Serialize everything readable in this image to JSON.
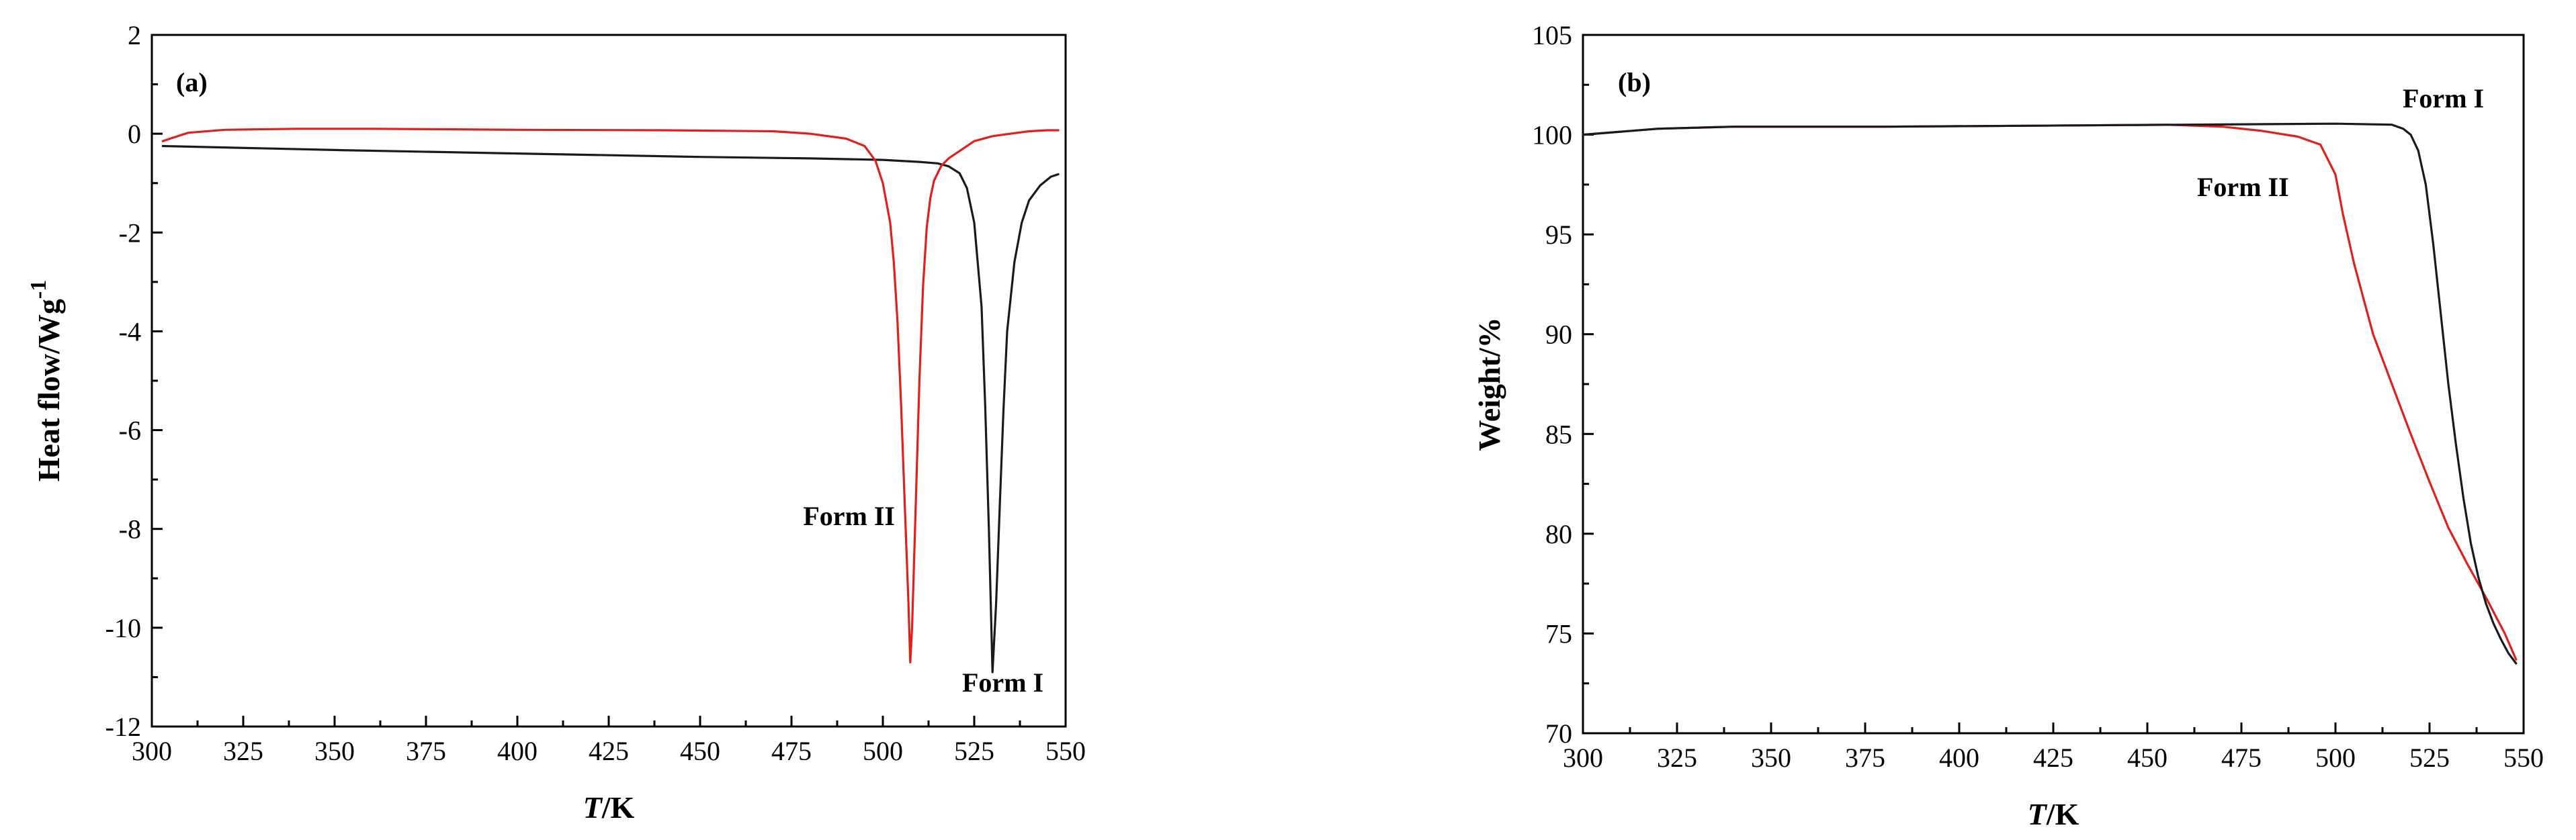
{
  "chart_data": [
    {
      "type": "line",
      "panel_label": "(a)",
      "xlabel_italic": "T",
      "xlabel_rest": "/K",
      "ylabel_main": "Heat flow/Wg",
      "ylabel_sup": "-1",
      "xlim": [
        300,
        550
      ],
      "ylim": [
        -12,
        2
      ],
      "xticks": [
        300,
        325,
        350,
        375,
        400,
        425,
        450,
        475,
        500,
        525,
        550
      ],
      "yticks": [
        -12,
        -10,
        -8,
        -6,
        -4,
        -2,
        0,
        2
      ],
      "annotations": [
        {
          "text": "Form II",
          "x": 489,
          "y": -7.9
        },
        {
          "text": "Form I",
          "x": 541,
          "y": -11.2
        }
      ],
      "series": [
        {
          "name": "Form I",
          "color": "#1a1a1a",
          "x": [
            303,
            350,
            400,
            450,
            480,
            500,
            510,
            515,
            518,
            521,
            523,
            525,
            527,
            528,
            529,
            530,
            531,
            532,
            533,
            534,
            536,
            538,
            540,
            543,
            546,
            548
          ],
          "y": [
            -0.25,
            -0.33,
            -0.4,
            -0.47,
            -0.5,
            -0.53,
            -0.57,
            -0.6,
            -0.66,
            -0.8,
            -1.1,
            -1.8,
            -3.5,
            -5.5,
            -8.0,
            -10.9,
            -9.5,
            -7.5,
            -5.6,
            -4.0,
            -2.6,
            -1.8,
            -1.35,
            -1.05,
            -0.87,
            -0.82
          ]
        },
        {
          "name": "Form II",
          "color": "#e0201a",
          "x": [
            303,
            305,
            310,
            320,
            340,
            360,
            400,
            440,
            470,
            480,
            490,
            495,
            498,
            500,
            502,
            503,
            504,
            505,
            506,
            507,
            507.5,
            508,
            509,
            510,
            511,
            512,
            513,
            514,
            516,
            518,
            521,
            525,
            530,
            535,
            540,
            545,
            548
          ],
          "y": [
            -0.15,
            -0.1,
            0.02,
            0.08,
            0.1,
            0.1,
            0.08,
            0.07,
            0.05,
            0.0,
            -0.1,
            -0.25,
            -0.55,
            -1.0,
            -1.8,
            -2.6,
            -3.8,
            -5.5,
            -7.5,
            -9.5,
            -10.7,
            -10.0,
            -7.5,
            -5.0,
            -3.1,
            -1.9,
            -1.3,
            -0.95,
            -0.65,
            -0.5,
            -0.35,
            -0.15,
            -0.05,
            0.0,
            0.05,
            0.07,
            0.07
          ]
        }
      ]
    },
    {
      "type": "line",
      "panel_label": "(b)",
      "xlabel_italic": "T",
      "xlabel_rest": "/K",
      "ylabel_main": "Weight/%",
      "xlim": [
        300,
        550
      ],
      "ylim": [
        70,
        105
      ],
      "xticks": [
        300,
        325,
        350,
        375,
        400,
        425,
        450,
        475,
        500,
        525,
        550
      ],
      "yticks": [
        70,
        75,
        80,
        85,
        90,
        95,
        100,
        105
      ],
      "annotations": [
        {
          "text": "Form I",
          "x": 531,
          "y": 101.5
        },
        {
          "text": "Form II",
          "x": 474,
          "y": 97.5
        }
      ],
      "series": [
        {
          "name": "Form I",
          "color": "#1a1a1a",
          "x": [
            300,
            320,
            340,
            380,
            420,
            460,
            500,
            515,
            518,
            520,
            522,
            524,
            526,
            528,
            530,
            532,
            534,
            536,
            538,
            540,
            542,
            544,
            546,
            548
          ],
          "y": [
            100.0,
            100.3,
            100.4,
            100.4,
            100.45,
            100.5,
            100.55,
            100.5,
            100.3,
            100.0,
            99.2,
            97.5,
            94.5,
            91.0,
            87.5,
            84.5,
            81.8,
            79.5,
            77.8,
            76.5,
            75.5,
            74.7,
            74.0,
            73.5
          ]
        },
        {
          "name": "Form II",
          "color": "#e0201a",
          "x": [
            300,
            320,
            340,
            380,
            420,
            455,
            470,
            480,
            490,
            496,
            500,
            502,
            505,
            510,
            515,
            520,
            525,
            530,
            535,
            540,
            545,
            548
          ],
          "y": [
            100.0,
            100.3,
            100.4,
            100.4,
            100.45,
            100.5,
            100.4,
            100.2,
            99.9,
            99.5,
            98.0,
            96.0,
            93.5,
            90.0,
            87.5,
            85.0,
            82.6,
            80.3,
            78.5,
            76.8,
            75.0,
            73.7
          ]
        }
      ]
    }
  ]
}
